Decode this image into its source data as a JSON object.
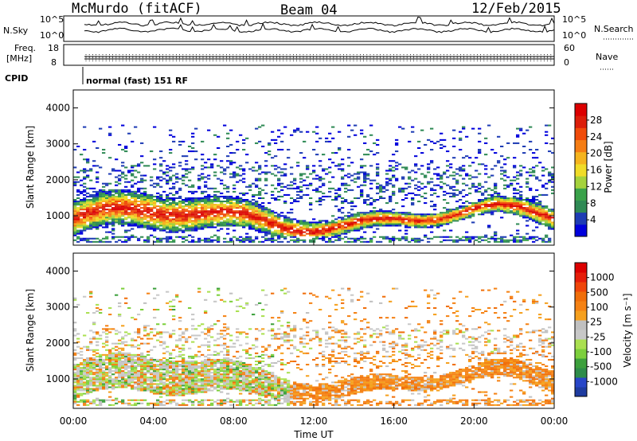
{
  "header": {
    "station": "McMurdo (fitACF)",
    "beam": "Beam 04",
    "date": "12/Feb/2015"
  },
  "status_panels": {
    "nsky_label": "N.Sky",
    "nsky_ticks": [
      "10^5",
      "10^0"
    ],
    "nsearch_label": "N.Search",
    "nsearch_ticks": [
      "10^5",
      "10^0"
    ],
    "freq_label_1": "Freq.",
    "freq_label_2": "[MHz]",
    "freq_ticks": [
      "18",
      "8"
    ],
    "nave_label": "Nave",
    "nave_ticks": [
      "60",
      "0"
    ],
    "cpid_label": "CPID",
    "cpid_text": "normal (fast) 151 RF"
  },
  "chart_data": [
    {
      "type": "heatmap",
      "name": "power",
      "ylabel": "Slant Range [km]",
      "y_ticks": [
        "1000",
        "2000",
        "3000",
        "4000"
      ],
      "ylim": [
        180,
        4500
      ],
      "colorbar_label": "Power [dB]",
      "colorbar_ticks": [
        "28",
        "24",
        "20",
        "16",
        "12",
        "8",
        "4"
      ],
      "colorbar_colors": [
        "#0000dc",
        "#1e3cb4",
        "#2f8a55",
        "#3aa24a",
        "#a5d23c",
        "#f0dc28",
        "#f5b41e",
        "#f57d14",
        "#f04b0a",
        "#dc1e0a",
        "#dc0000"
      ],
      "xlim": [
        "00:00",
        "24:00"
      ],
      "grid": false
    },
    {
      "type": "heatmap",
      "name": "velocity",
      "ylabel": "Slant Range [km]",
      "y_ticks": [
        "1000",
        "2000",
        "3000",
        "4000"
      ],
      "ylim": [
        180,
        4500
      ],
      "colorbar_label": "Velocity  [m s⁻¹]",
      "colorbar_ticks": [
        "1000",
        "500",
        "100",
        "25",
        "-25",
        "-100",
        "-500",
        "-1000"
      ],
      "colorbar_colors": [
        "#1e3ca0",
        "#2846c8",
        "#2e8c4a",
        "#3ca03c",
        "#7ccf3c",
        "#aae050",
        "#c8c8c8",
        "#c0c0c0",
        "#f5a01e",
        "#f58214",
        "#f06e0a",
        "#f0460a",
        "#e61e0a",
        "#dc0000"
      ],
      "xlim": [
        "00:00",
        "24:00"
      ],
      "grid": false
    }
  ],
  "x_axis": {
    "label": "Time UT",
    "ticks": [
      "00:00",
      "04:00",
      "08:00",
      "12:00",
      "16:00",
      "20:00",
      "00:00"
    ]
  }
}
